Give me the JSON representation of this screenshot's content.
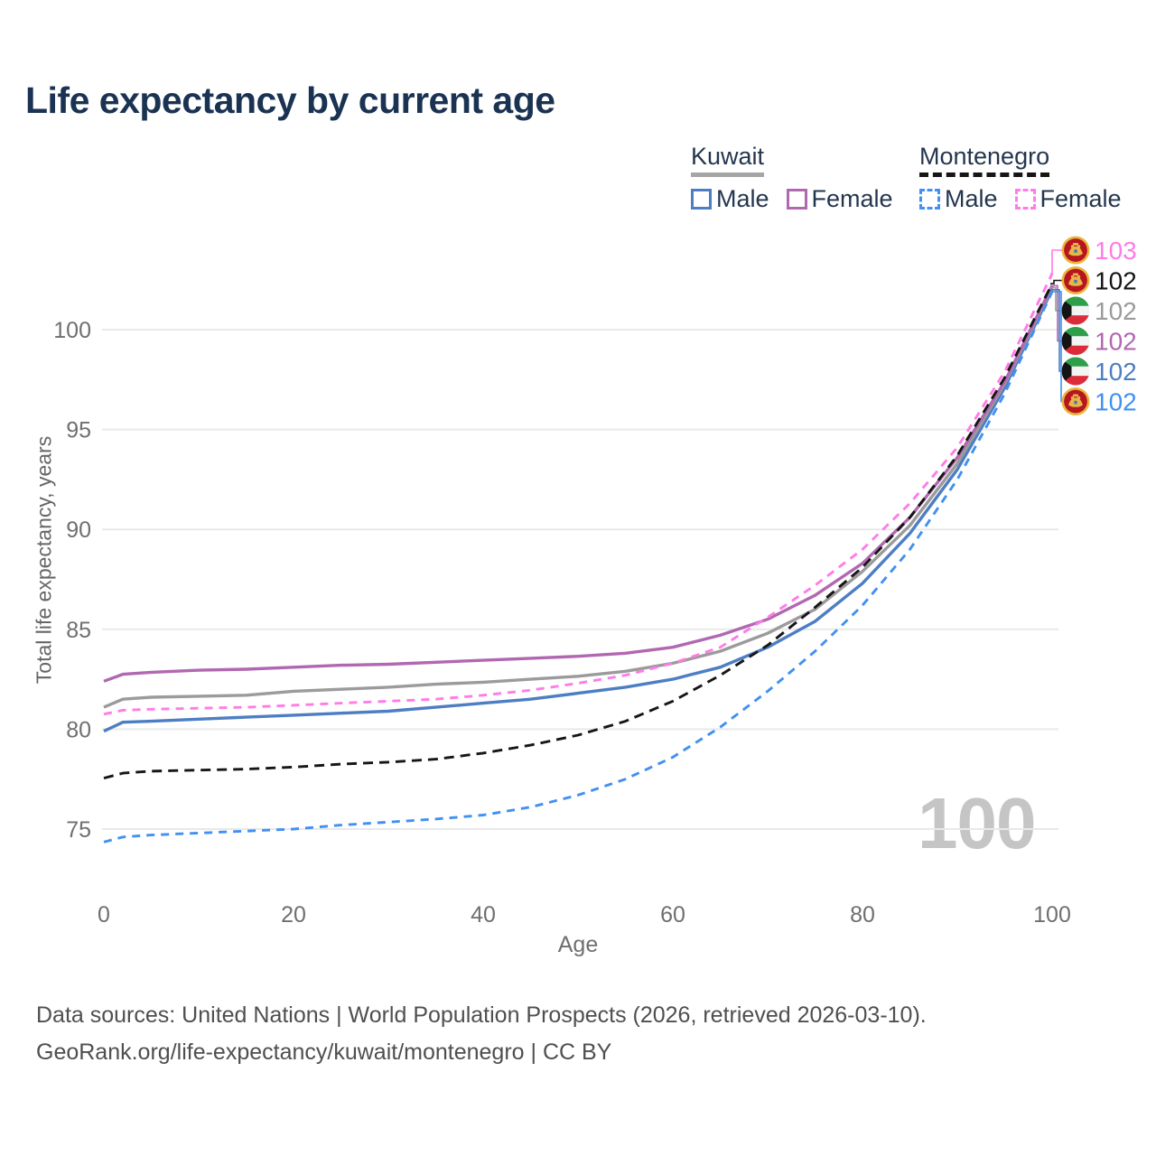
{
  "title": "Life expectancy by current age",
  "legend": {
    "groups": [
      {
        "id": "kuwait",
        "label": "Kuwait",
        "line_color": "#a5a5a5",
        "line_style": "solid",
        "items": [
          {
            "label": "Male",
            "color": "#4d7ec3",
            "dashed": false
          },
          {
            "label": "Female",
            "color": "#b168b1",
            "dashed": false
          }
        ]
      },
      {
        "id": "montenegro",
        "label": "Montenegro",
        "line_color": "#161616",
        "line_style": "dashed",
        "items": [
          {
            "label": "Male",
            "color": "#4190f2",
            "dashed": true
          },
          {
            "label": "Female",
            "color": "#ff7ce8",
            "dashed": true
          }
        ]
      }
    ]
  },
  "chart_data": {
    "type": "line",
    "title": "Life expectancy by current age",
    "xlabel": "Age",
    "ylabel": "Total life expectancy, years",
    "x_ticks": [
      0,
      20,
      40,
      60,
      80,
      100
    ],
    "y_ticks": [
      75,
      80,
      85,
      90,
      95,
      100
    ],
    "xlim": [
      0,
      100
    ],
    "ylim": [
      74,
      103.5
    ],
    "grid": "horizontal",
    "legend_position": "top-right",
    "series": [
      {
        "id": "kuwait-male",
        "name": "Male",
        "country": "Kuwait",
        "color": "#4d7ec3",
        "dashed": false,
        "points": [
          [
            0,
            79.9
          ],
          [
            2,
            80.35
          ],
          [
            5,
            80.4
          ],
          [
            10,
            80.5
          ],
          [
            15,
            80.6
          ],
          [
            20,
            80.7
          ],
          [
            25,
            80.8
          ],
          [
            30,
            80.9
          ],
          [
            35,
            81.1
          ],
          [
            40,
            81.3
          ],
          [
            45,
            81.5
          ],
          [
            50,
            81.8
          ],
          [
            55,
            82.1
          ],
          [
            60,
            82.5
          ],
          [
            65,
            83.1
          ],
          [
            70,
            84.1
          ],
          [
            75,
            85.4
          ],
          [
            80,
            87.3
          ],
          [
            85,
            89.8
          ],
          [
            90,
            93.0
          ],
          [
            95,
            97.1
          ],
          [
            100,
            102.0
          ]
        ]
      },
      {
        "id": "kuwait-total",
        "name": "Total",
        "country": "Kuwait",
        "color": "#9b9b9b",
        "dashed": false,
        "points": [
          [
            0,
            81.1
          ],
          [
            2,
            81.5
          ],
          [
            5,
            81.6
          ],
          [
            10,
            81.65
          ],
          [
            15,
            81.7
          ],
          [
            20,
            81.9
          ],
          [
            25,
            82.0
          ],
          [
            30,
            82.1
          ],
          [
            35,
            82.25
          ],
          [
            40,
            82.35
          ],
          [
            45,
            82.5
          ],
          [
            50,
            82.65
          ],
          [
            55,
            82.9
          ],
          [
            60,
            83.3
          ],
          [
            65,
            83.9
          ],
          [
            70,
            84.8
          ],
          [
            75,
            86.0
          ],
          [
            80,
            87.9
          ],
          [
            85,
            90.2
          ],
          [
            90,
            93.3
          ],
          [
            95,
            97.3
          ],
          [
            100,
            102.1
          ]
        ]
      },
      {
        "id": "kuwait-female",
        "name": "Female",
        "country": "Kuwait",
        "color": "#b168b1",
        "dashed": false,
        "points": [
          [
            0,
            82.4
          ],
          [
            2,
            82.75
          ],
          [
            5,
            82.85
          ],
          [
            10,
            82.95
          ],
          [
            15,
            83.0
          ],
          [
            20,
            83.1
          ],
          [
            25,
            83.2
          ],
          [
            30,
            83.25
          ],
          [
            35,
            83.35
          ],
          [
            40,
            83.45
          ],
          [
            45,
            83.55
          ],
          [
            50,
            83.65
          ],
          [
            55,
            83.8
          ],
          [
            60,
            84.1
          ],
          [
            65,
            84.7
          ],
          [
            70,
            85.5
          ],
          [
            75,
            86.7
          ],
          [
            80,
            88.3
          ],
          [
            85,
            90.6
          ],
          [
            90,
            93.6
          ],
          [
            95,
            97.4
          ],
          [
            100,
            102.2
          ]
        ]
      },
      {
        "id": "montenegro-male",
        "name": "Male",
        "country": "Montenegro",
        "color": "#4190f2",
        "dashed": true,
        "points": [
          [
            0,
            74.35
          ],
          [
            2,
            74.6
          ],
          [
            5,
            74.7
          ],
          [
            10,
            74.8
          ],
          [
            15,
            74.9
          ],
          [
            20,
            75.0
          ],
          [
            25,
            75.2
          ],
          [
            30,
            75.35
          ],
          [
            35,
            75.5
          ],
          [
            40,
            75.7
          ],
          [
            45,
            76.1
          ],
          [
            50,
            76.7
          ],
          [
            55,
            77.5
          ],
          [
            60,
            78.6
          ],
          [
            65,
            80.1
          ],
          [
            70,
            81.9
          ],
          [
            75,
            83.9
          ],
          [
            80,
            86.2
          ],
          [
            85,
            89.0
          ],
          [
            90,
            92.5
          ],
          [
            95,
            96.8
          ],
          [
            100,
            101.9
          ]
        ]
      },
      {
        "id": "montenegro-total",
        "name": "Total",
        "country": "Montenegro",
        "color": "#161616",
        "dashed": true,
        "points": [
          [
            0,
            77.55
          ],
          [
            2,
            77.8
          ],
          [
            5,
            77.9
          ],
          [
            10,
            77.95
          ],
          [
            15,
            78.0
          ],
          [
            20,
            78.1
          ],
          [
            25,
            78.25
          ],
          [
            30,
            78.35
          ],
          [
            35,
            78.5
          ],
          [
            40,
            78.8
          ],
          [
            45,
            79.2
          ],
          [
            50,
            79.7
          ],
          [
            55,
            80.4
          ],
          [
            60,
            81.4
          ],
          [
            65,
            82.7
          ],
          [
            70,
            84.2
          ],
          [
            75,
            86.1
          ],
          [
            80,
            88.1
          ],
          [
            85,
            90.6
          ],
          [
            90,
            93.7
          ],
          [
            95,
            97.6
          ],
          [
            100,
            102.3
          ]
        ]
      },
      {
        "id": "montenegro-female",
        "name": "Female",
        "country": "Montenegro",
        "color": "#ff7ce8",
        "dashed": true,
        "points": [
          [
            0,
            80.75
          ],
          [
            2,
            80.95
          ],
          [
            5,
            81.0
          ],
          [
            10,
            81.05
          ],
          [
            15,
            81.1
          ],
          [
            20,
            81.2
          ],
          [
            25,
            81.3
          ],
          [
            30,
            81.4
          ],
          [
            35,
            81.5
          ],
          [
            40,
            81.7
          ],
          [
            45,
            81.95
          ],
          [
            50,
            82.3
          ],
          [
            55,
            82.7
          ],
          [
            60,
            83.3
          ],
          [
            65,
            84.1
          ],
          [
            70,
            85.6
          ],
          [
            75,
            87.2
          ],
          [
            80,
            89.0
          ],
          [
            85,
            91.3
          ],
          [
            90,
            94.1
          ],
          [
            95,
            97.9
          ],
          [
            100,
            102.8
          ]
        ]
      }
    ],
    "end_labels": [
      {
        "series": "montenegro-female",
        "value": "103",
        "flag": "montenegro-flag-icon"
      },
      {
        "series": "montenegro-total",
        "value": "102",
        "flag": "montenegro-flag-icon"
      },
      {
        "series": "kuwait-total",
        "value": "102",
        "flag": "kuwait-flag-icon"
      },
      {
        "series": "kuwait-female",
        "value": "102",
        "flag": "kuwait-flag-icon"
      },
      {
        "series": "kuwait-male",
        "value": "102",
        "flag": "kuwait-flag-icon"
      },
      {
        "series": "montenegro-male",
        "value": "102",
        "flag": "montenegro-flag-icon"
      }
    ]
  },
  "watermark": "100",
  "footer": {
    "line1": "Data sources: United Nations | World Population Prospects (2026, retrieved 2026-03-10).",
    "line2": "GeoRank.org/life-expectancy/kuwait/montenegro | CC BY"
  },
  "colors": {
    "title_text": "#1b3352",
    "axis_text": "#6f6f6f",
    "gridline": "#e9e9e9",
    "watermark": "#c5c5c5",
    "kuwait_male": "#4d7ec3",
    "kuwait_female": "#b168b1",
    "kuwait_total": "#9b9b9b",
    "montenegro_male": "#4190f2",
    "montenegro_female": "#ff7ce8",
    "montenegro_total": "#161616"
  }
}
